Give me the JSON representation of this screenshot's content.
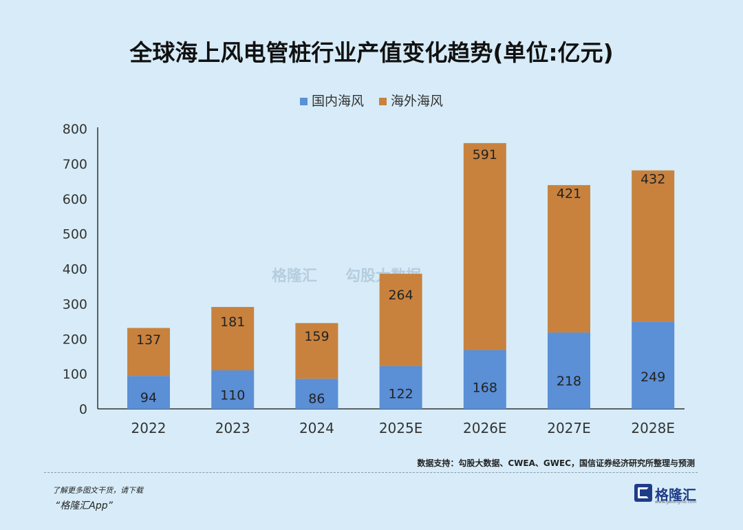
{
  "title": "全球海上风电管桩行业产值变化趋势(单位:亿元)",
  "source": "数据支持：勾股大数据、CWEA、GWEC，国信证券经济研究所整理与预测",
  "promo": {
    "line1": "了解更多图文干货，请下载",
    "line2": "“格隆汇App”"
  },
  "logo": {
    "name": "格隆汇",
    "sub": "www.gelonghui.com"
  },
  "watermark": {
    "left": "格隆汇",
    "right": "勾股大数据"
  },
  "colors": {
    "domestic": "#5b8fd6",
    "overseas": "#c8823e",
    "background": "#d7ecf8"
  },
  "chart_data": {
    "type": "bar",
    "stacked": true,
    "title": "全球海上风电管桩行业产值变化趋势(单位:亿元)",
    "categories": [
      "2022",
      "2023",
      "2024",
      "2025E",
      "2026E",
      "2027E",
      "2028E"
    ],
    "series": [
      {
        "name": "国内海风",
        "values": [
          94,
          110,
          86,
          122,
          168,
          218,
          249
        ]
      },
      {
        "name": "海外海风",
        "values": [
          137,
          181,
          159,
          264,
          591,
          421,
          432
        ]
      }
    ],
    "ylim": [
      0,
      800
    ],
    "yticks": [
      0,
      100,
      200,
      300,
      400,
      500,
      600,
      700,
      800
    ],
    "grid": false,
    "legend": "top-center"
  }
}
